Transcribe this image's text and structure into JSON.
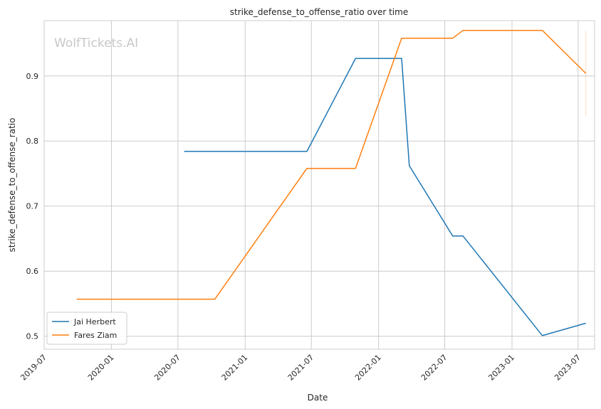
{
  "chart_data": {
    "type": "line",
    "title": "strike_defense_to_offense_ratio over time",
    "xlabel": "Date",
    "ylabel": "strike_defense_to_offense_ratio",
    "watermark": "WolfTickets.AI",
    "xlim": [
      "2019-07-01",
      "2023-08-15"
    ],
    "ylim": [
      0.48,
      0.985
    ],
    "x_ticks": [
      "2019-07",
      "2020-01",
      "2020-07",
      "2021-01",
      "2021-07",
      "2022-01",
      "2022-07",
      "2023-01",
      "2023-07"
    ],
    "y_ticks": [
      0.5,
      0.6,
      0.7,
      0.8,
      0.9
    ],
    "grid": true,
    "legend_position": "lower-left",
    "colors": {
      "Jai Herbert": "#1f77b4",
      "Fares Ziam": "#ff7f0e"
    },
    "series": [
      {
        "name": "Jai Herbert",
        "color": "#1f77b4",
        "points": [
          {
            "x": "2020-07-18",
            "y": 0.784
          },
          {
            "x": "2021-06-19",
            "y": 0.784
          },
          {
            "x": "2021-10-30",
            "y": 0.927
          },
          {
            "x": "2022-03-05",
            "y": 0.927
          },
          {
            "x": "2022-03-26",
            "y": 0.762
          },
          {
            "x": "2022-07-23",
            "y": 0.654
          },
          {
            "x": "2022-08-20",
            "y": 0.654
          },
          {
            "x": "2023-03-25",
            "y": 0.501
          },
          {
            "x": "2023-07-22",
            "y": 0.52
          }
        ]
      },
      {
        "name": "Fares Ziam",
        "color": "#ff7f0e",
        "points": [
          {
            "x": "2019-09-28",
            "y": 0.557
          },
          {
            "x": "2020-10-10",
            "y": 0.557
          },
          {
            "x": "2021-06-19",
            "y": 0.758
          },
          {
            "x": "2021-10-30",
            "y": 0.758
          },
          {
            "x": "2022-03-05",
            "y": 0.958
          },
          {
            "x": "2022-07-23",
            "y": 0.958
          },
          {
            "x": "2022-08-20",
            "y": 0.97
          },
          {
            "x": "2023-03-25",
            "y": 0.97
          },
          {
            "x": "2023-07-22",
            "y": 0.904
          }
        ]
      }
    ],
    "error_bars": [
      {
        "series": "Fares Ziam",
        "x": "2023-07-22",
        "low": 0.838,
        "high": 0.97
      }
    ]
  }
}
